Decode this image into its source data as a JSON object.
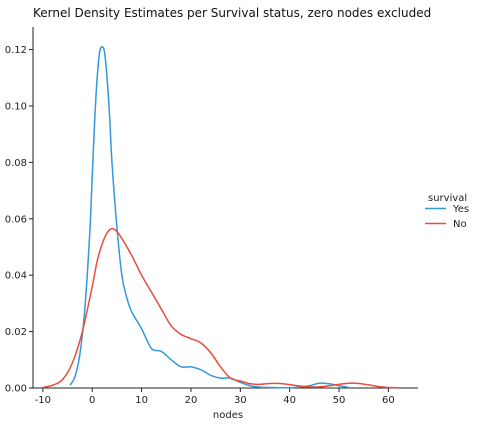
{
  "chart_data": {
    "type": "line",
    "title": "Kernel Density Estimates per Survival status, zero nodes excluded",
    "xlabel": "nodes",
    "ylabel": "",
    "xlim": [
      -12,
      66
    ],
    "ylim": [
      0,
      0.128
    ],
    "xticks": [
      -10,
      0,
      10,
      20,
      30,
      40,
      50,
      60
    ],
    "yticks": [
      0.0,
      0.02,
      0.04,
      0.06,
      0.08,
      0.1,
      0.12
    ],
    "ytick_labels": [
      "0.00",
      "0.02",
      "0.04",
      "0.06",
      "0.08",
      "0.10",
      "0.12"
    ],
    "grid": false,
    "legend": {
      "title": "survival",
      "placement": "right",
      "entries": [
        {
          "label": "Yes",
          "color": "#3498db"
        },
        {
          "label": "No",
          "color": "#e74c3c"
        }
      ]
    },
    "series": [
      {
        "name": "Yes",
        "color": "#3498db",
        "x": [
          -4.5,
          -3.5,
          -2.5,
          -1.5,
          -0.5,
          0.0,
          0.5,
          1.0,
          1.5,
          2.0,
          2.5,
          3.0,
          3.5,
          4.0,
          5.0,
          6.0,
          7.0,
          8.0,
          10.0,
          12.0,
          14.0,
          16.0,
          18.0,
          20.0,
          22.0,
          24.0,
          26.0,
          28.0,
          30.0,
          32.0,
          34.0,
          36.0,
          38.0,
          40.0,
          42.0,
          44.0,
          46.0,
          48.0,
          50.0,
          52.0
        ],
        "y": [
          0.001,
          0.004,
          0.012,
          0.028,
          0.055,
          0.075,
          0.095,
          0.11,
          0.119,
          0.121,
          0.119,
          0.11,
          0.097,
          0.08,
          0.057,
          0.04,
          0.032,
          0.027,
          0.021,
          0.014,
          0.013,
          0.01,
          0.0075,
          0.0075,
          0.0065,
          0.0045,
          0.0035,
          0.0035,
          0.002,
          0.0008,
          0.0003,
          0.0002,
          0.0001,
          0.0001,
          0.0003,
          0.0008,
          0.0017,
          0.0015,
          0.0008,
          0.0002
        ]
      },
      {
        "name": "No",
        "color": "#e74c3c",
        "x": [
          -10.0,
          -8.0,
          -6.0,
          -4.0,
          -2.0,
          0.0,
          1.0,
          2.0,
          3.0,
          4.0,
          5.0,
          6.0,
          8.0,
          10.0,
          12.0,
          14.0,
          16.0,
          18.0,
          20.0,
          22.0,
          24.0,
          26.0,
          28.0,
          30.0,
          32.0,
          34.0,
          36.0,
          38.0,
          40.0,
          42.0,
          44.0,
          46.0,
          48.0,
          50.0,
          52.0,
          54.0,
          56.0,
          58.0,
          60.0,
          62.0
        ],
        "y": [
          0.0002,
          0.001,
          0.003,
          0.009,
          0.02,
          0.036,
          0.045,
          0.051,
          0.055,
          0.0565,
          0.0555,
          0.053,
          0.047,
          0.04,
          0.034,
          0.028,
          0.022,
          0.019,
          0.0175,
          0.016,
          0.0125,
          0.0075,
          0.0035,
          0.0025,
          0.0015,
          0.0013,
          0.0016,
          0.0016,
          0.0012,
          0.0007,
          0.0004,
          0.0004,
          0.0008,
          0.0013,
          0.0017,
          0.0016,
          0.0011,
          0.0005,
          0.0002,
          0.0001
        ]
      }
    ]
  }
}
